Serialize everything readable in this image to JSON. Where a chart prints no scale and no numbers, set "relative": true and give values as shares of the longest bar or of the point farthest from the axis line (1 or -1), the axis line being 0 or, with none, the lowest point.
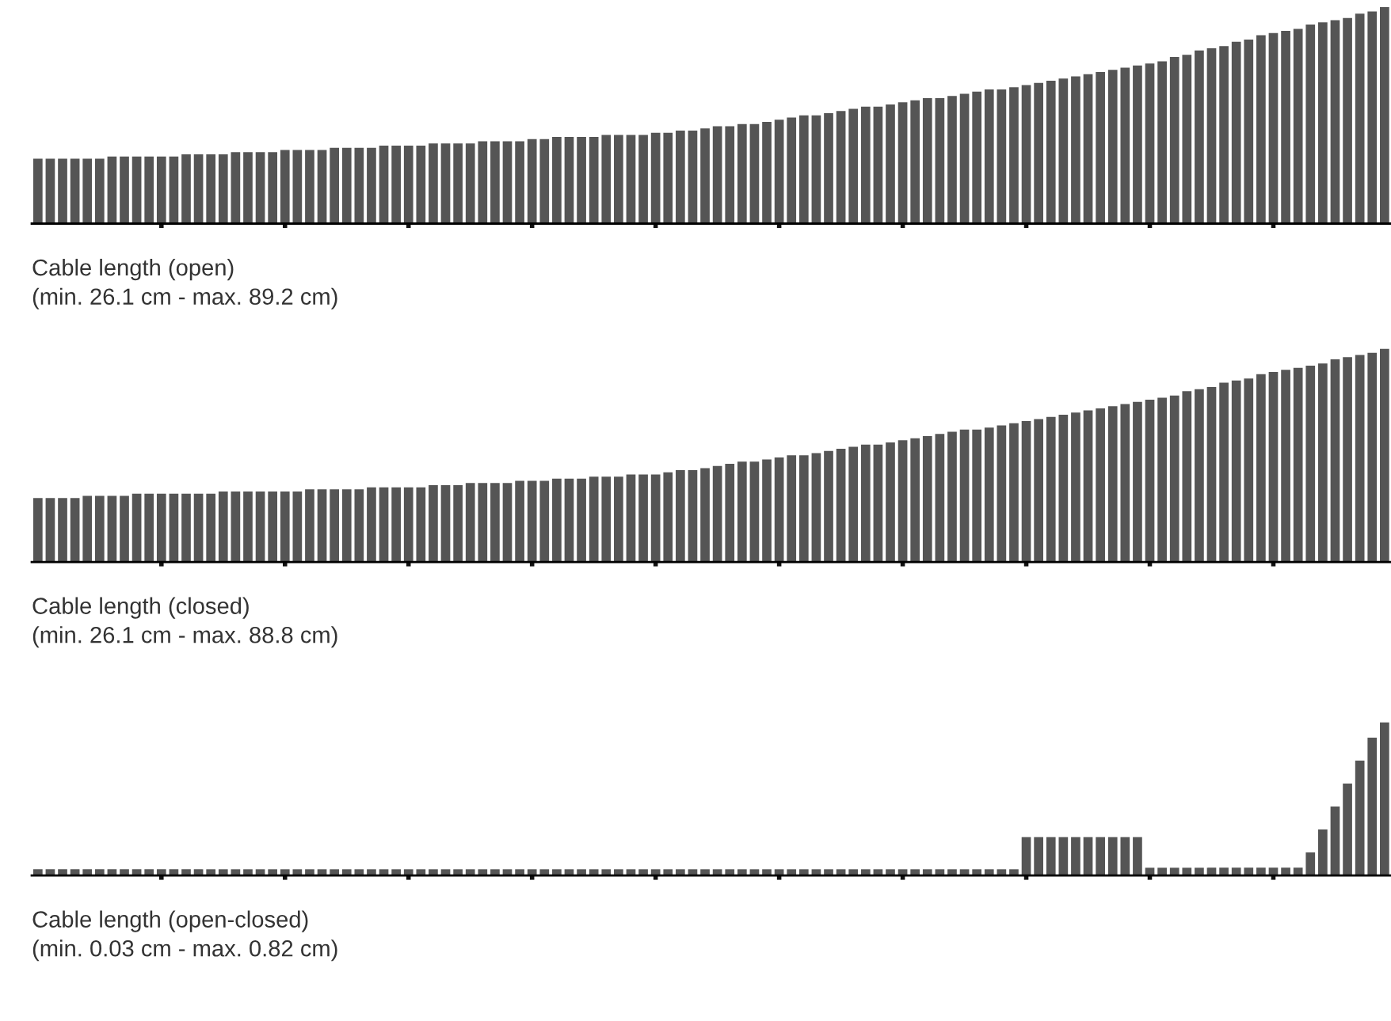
{
  "chart_data": [
    {
      "type": "bar",
      "relative": true,
      "tick_labels": false,
      "color": "#555555",
      "xlabel": "Cable length (open)\n(min. 26.1 cm - max. 89.2 cm)",
      "categories": [
        null,
        null,
        null,
        null,
        null,
        null,
        null,
        null,
        null,
        null,
        null,
        null,
        null,
        null,
        null,
        null,
        null,
        null,
        null,
        null,
        null,
        null,
        null,
        null,
        null,
        null,
        null,
        null,
        null,
        null,
        null,
        null,
        null,
        null,
        null,
        null,
        null,
        null,
        null,
        null,
        null,
        null,
        null,
        null,
        null,
        null,
        null,
        null,
        null,
        null,
        null,
        null,
        null,
        null,
        null,
        null,
        null,
        null,
        null,
        null,
        null,
        null,
        null,
        null,
        null,
        null,
        null,
        null,
        null,
        null,
        null,
        null,
        null,
        null,
        null,
        null,
        null,
        null,
        null,
        null,
        null,
        null,
        null,
        null,
        null,
        null,
        null,
        null,
        null,
        null,
        null,
        null,
        null,
        null,
        null,
        null,
        null,
        null,
        null,
        null,
        null,
        null,
        null,
        null,
        null,
        null,
        null,
        null,
        null,
        null
      ],
      "values": [
        0.3,
        0.3,
        0.3,
        0.3,
        0.3,
        0.3,
        0.31,
        0.31,
        0.31,
        0.31,
        0.31,
        0.31,
        0.32,
        0.32,
        0.32,
        0.32,
        0.33,
        0.33,
        0.33,
        0.33,
        0.34,
        0.34,
        0.34,
        0.34,
        0.35,
        0.35,
        0.35,
        0.35,
        0.36,
        0.36,
        0.36,
        0.36,
        0.37,
        0.37,
        0.37,
        0.37,
        0.38,
        0.38,
        0.38,
        0.38,
        0.39,
        0.39,
        0.4,
        0.4,
        0.4,
        0.4,
        0.41,
        0.41,
        0.41,
        0.41,
        0.42,
        0.42,
        0.43,
        0.43,
        0.44,
        0.45,
        0.45,
        0.46,
        0.46,
        0.47,
        0.48,
        0.49,
        0.5,
        0.5,
        0.51,
        0.52,
        0.53,
        0.54,
        0.54,
        0.55,
        0.56,
        0.57,
        0.58,
        0.58,
        0.59,
        0.6,
        0.61,
        0.62,
        0.62,
        0.63,
        0.64,
        0.65,
        0.66,
        0.67,
        0.68,
        0.69,
        0.7,
        0.71,
        0.72,
        0.73,
        0.74,
        0.75,
        0.77,
        0.78,
        0.8,
        0.81,
        0.82,
        0.84,
        0.85,
        0.87,
        0.88,
        0.89,
        0.9,
        0.92,
        0.93,
        0.94,
        0.95,
        0.97,
        0.98,
        1.0
      ]
    },
    {
      "type": "bar",
      "relative": true,
      "tick_labels": false,
      "color": "#555555",
      "xlabel": "Cable length (closed)\n(min. 26.1 cm - max. 88.8 cm)",
      "categories": [
        null,
        null,
        null,
        null,
        null,
        null,
        null,
        null,
        null,
        null,
        null,
        null,
        null,
        null,
        null,
        null,
        null,
        null,
        null,
        null,
        null,
        null,
        null,
        null,
        null,
        null,
        null,
        null,
        null,
        null,
        null,
        null,
        null,
        null,
        null,
        null,
        null,
        null,
        null,
        null,
        null,
        null,
        null,
        null,
        null,
        null,
        null,
        null,
        null,
        null,
        null,
        null,
        null,
        null,
        null,
        null,
        null,
        null,
        null,
        null,
        null,
        null,
        null,
        null,
        null,
        null,
        null,
        null,
        null,
        null,
        null,
        null,
        null,
        null,
        null,
        null,
        null,
        null,
        null,
        null,
        null,
        null,
        null,
        null,
        null,
        null,
        null,
        null,
        null,
        null,
        null,
        null,
        null,
        null,
        null,
        null,
        null,
        null,
        null,
        null,
        null,
        null,
        null,
        null,
        null,
        null,
        null,
        null,
        null,
        null
      ],
      "values": [
        0.3,
        0.3,
        0.3,
        0.3,
        0.31,
        0.31,
        0.31,
        0.31,
        0.32,
        0.32,
        0.32,
        0.32,
        0.32,
        0.32,
        0.32,
        0.33,
        0.33,
        0.33,
        0.33,
        0.33,
        0.33,
        0.33,
        0.34,
        0.34,
        0.34,
        0.34,
        0.34,
        0.35,
        0.35,
        0.35,
        0.35,
        0.35,
        0.36,
        0.36,
        0.36,
        0.37,
        0.37,
        0.37,
        0.37,
        0.38,
        0.38,
        0.38,
        0.39,
        0.39,
        0.39,
        0.4,
        0.4,
        0.4,
        0.41,
        0.41,
        0.41,
        0.42,
        0.43,
        0.43,
        0.44,
        0.45,
        0.46,
        0.47,
        0.47,
        0.48,
        0.49,
        0.5,
        0.5,
        0.51,
        0.52,
        0.53,
        0.54,
        0.55,
        0.55,
        0.56,
        0.57,
        0.58,
        0.59,
        0.6,
        0.61,
        0.62,
        0.62,
        0.63,
        0.64,
        0.65,
        0.66,
        0.67,
        0.68,
        0.69,
        0.7,
        0.71,
        0.72,
        0.73,
        0.74,
        0.75,
        0.76,
        0.77,
        0.78,
        0.8,
        0.81,
        0.82,
        0.84,
        0.85,
        0.86,
        0.88,
        0.89,
        0.9,
        0.91,
        0.92,
        0.93,
        0.95,
        0.96,
        0.97,
        0.98,
        1.0
      ]
    },
    {
      "type": "bar",
      "relative": true,
      "tick_labels": false,
      "color": "#555555",
      "xlabel": "Cable length (open-closed)\n(min. 0.03 cm - max. 0.82 cm)",
      "categories": [
        null,
        null,
        null,
        null,
        null,
        null,
        null,
        null,
        null,
        null,
        null,
        null,
        null,
        null,
        null,
        null,
        null,
        null,
        null,
        null,
        null,
        null,
        null,
        null,
        null,
        null,
        null,
        null,
        null,
        null,
        null,
        null,
        null,
        null,
        null,
        null,
        null,
        null,
        null,
        null,
        null,
        null,
        null,
        null,
        null,
        null,
        null,
        null,
        null,
        null,
        null,
        null,
        null,
        null,
        null,
        null,
        null,
        null,
        null,
        null,
        null,
        null,
        null,
        null,
        null,
        null,
        null,
        null,
        null,
        null,
        null,
        null,
        null,
        null,
        null,
        null,
        null,
        null,
        null,
        null,
        null,
        null,
        null,
        null,
        null,
        null,
        null,
        null,
        null,
        null,
        null,
        null,
        null,
        null,
        null,
        null,
        null,
        null,
        null,
        null,
        null,
        null,
        null,
        null,
        null,
        null,
        null,
        null,
        null,
        null
      ],
      "values": [
        0.04,
        0.04,
        0.04,
        0.04,
        0.04,
        0.04,
        0.04,
        0.04,
        0.04,
        0.04,
        0.04,
        0.04,
        0.04,
        0.04,
        0.04,
        0.04,
        0.04,
        0.04,
        0.04,
        0.04,
        0.04,
        0.04,
        0.04,
        0.04,
        0.04,
        0.04,
        0.04,
        0.04,
        0.04,
        0.04,
        0.04,
        0.04,
        0.04,
        0.04,
        0.04,
        0.04,
        0.04,
        0.04,
        0.04,
        0.04,
        0.04,
        0.04,
        0.04,
        0.04,
        0.04,
        0.04,
        0.04,
        0.04,
        0.04,
        0.04,
        0.04,
        0.04,
        0.04,
        0.04,
        0.04,
        0.04,
        0.04,
        0.04,
        0.04,
        0.04,
        0.04,
        0.04,
        0.04,
        0.04,
        0.04,
        0.04,
        0.04,
        0.04,
        0.04,
        0.04,
        0.04,
        0.04,
        0.04,
        0.04,
        0.04,
        0.04,
        0.04,
        0.04,
        0.04,
        0.04,
        0.25,
        0.25,
        0.25,
        0.25,
        0.25,
        0.25,
        0.25,
        0.25,
        0.25,
        0.25,
        0.05,
        0.05,
        0.05,
        0.05,
        0.05,
        0.05,
        0.05,
        0.05,
        0.05,
        0.05,
        0.05,
        0.05,
        0.05,
        0.15,
        0.3,
        0.45,
        0.6,
        0.75,
        0.9,
        1.0
      ]
    }
  ]
}
